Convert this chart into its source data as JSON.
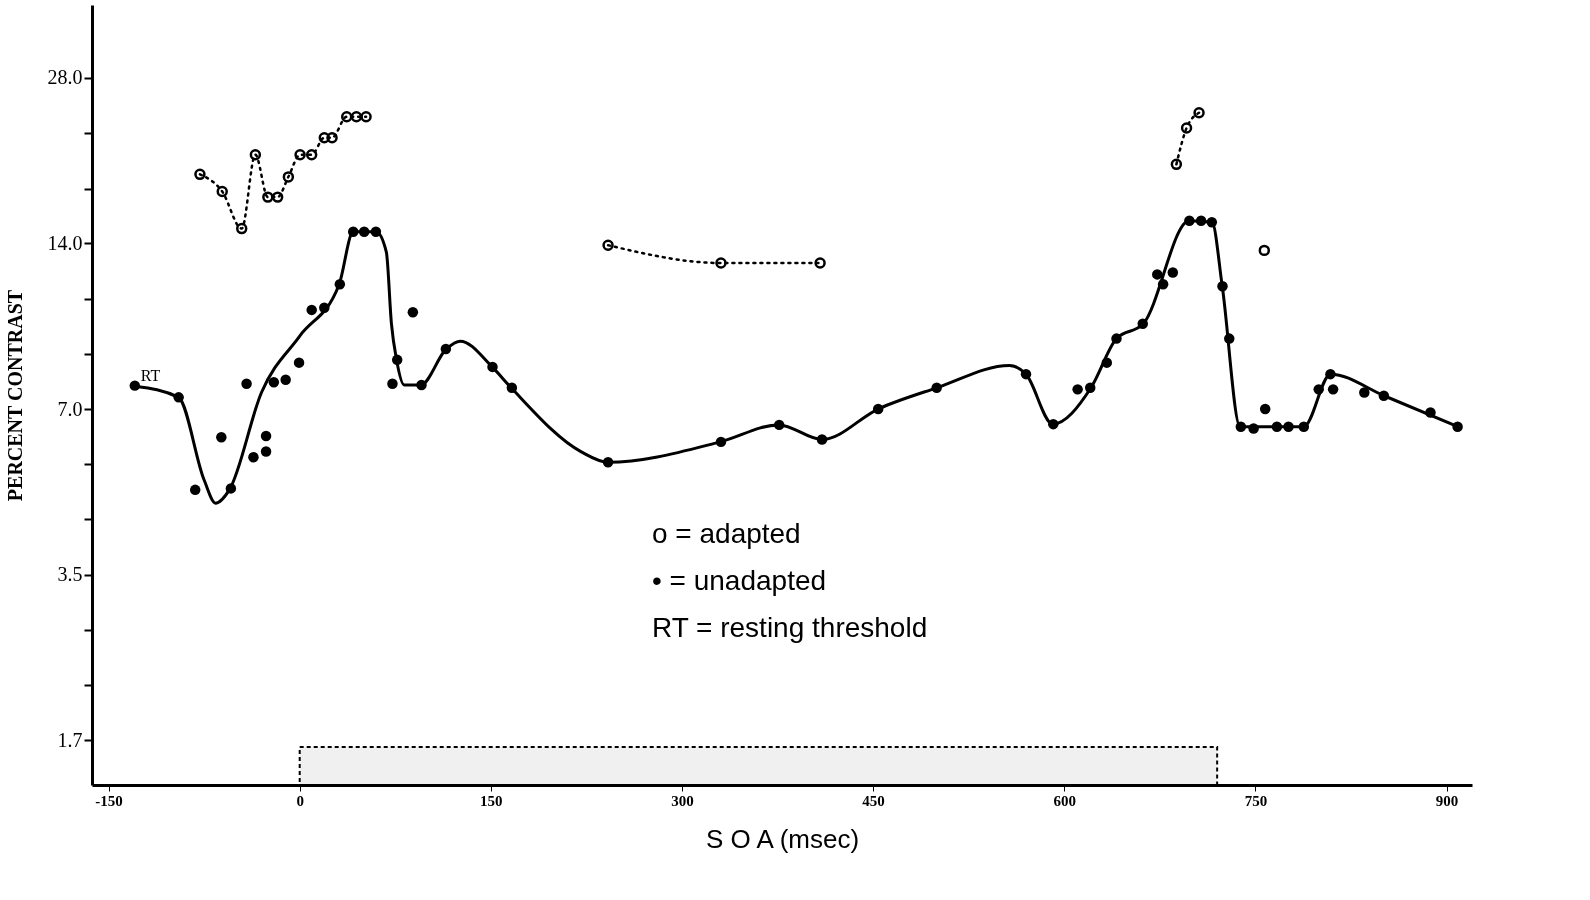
{
  "chart_data": {
    "type": "scatter",
    "xlabel": "S O A (msec)",
    "ylabel": "PERCENT CONTRAST",
    "xlim": [
      -163,
      920
    ],
    "xticks": [
      -150,
      0,
      150,
      300,
      450,
      600,
      750,
      900
    ],
    "ylim": [
      1.45,
      38
    ],
    "log": "y",
    "yticks": [
      {
        "value": 1.75,
        "label": "1.7"
      },
      {
        "value": 2.2,
        "label": null
      },
      {
        "value": 2.78,
        "label": null
      },
      {
        "value": 3.5,
        "label": "3.5"
      },
      {
        "value": 4.41,
        "label": null
      },
      {
        "value": 5.56,
        "label": null
      },
      {
        "value": 7,
        "label": "7.0"
      },
      {
        "value": 8.8,
        "label": null
      },
      {
        "value": 11.1,
        "label": null
      },
      {
        "value": 14,
        "label": "14.0"
      },
      {
        "value": 17.6,
        "label": null
      },
      {
        "value": 22.2,
        "label": null
      },
      {
        "value": 28,
        "label": "28.0"
      }
    ],
    "grid": false,
    "series": [
      {
        "type": "line",
        "color": "#000000",
        "marker": "none",
        "line_style": "solid",
        "x": [
          -129,
          -95,
          -75,
          -66,
          -55,
          -30,
          0,
          31,
          42,
          60,
          68,
          72,
          76,
          82,
          95,
          115,
          126,
          151,
          166,
          221,
          242,
          330,
          376,
          410,
          454,
          500,
          557,
          570,
          591,
          621,
          641,
          662,
          698,
          716,
          724,
          738,
          788,
          809,
          851,
          909
        ],
        "values": [
          7.7,
          7.35,
          5.2,
          4.72,
          5.0,
          7.5,
          9.5,
          11.8,
          14.7,
          14.7,
          13.5,
          10,
          8.6,
          7.74,
          7.74,
          9.0,
          9.3,
          8.35,
          7.65,
          5.85,
          5.6,
          6.1,
          6.55,
          6.16,
          7.0,
          7.65,
          8.4,
          8.1,
          6.57,
          7.65,
          9.4,
          10.0,
          15.4,
          15.3,
          11.7,
          6.5,
          6.5,
          8.1,
          7.4,
          6.5
        ]
      },
      {
        "color": "#000000",
        "marker": "circle",
        "x": [
          -129.4,
          -95,
          -82,
          -61.5,
          -54,
          -41.7,
          -36.3,
          -26.4,
          -26.4,
          -20.3,
          -11,
          -0.5,
          9.4,
          19.3,
          31.5,
          42,
          50.6,
          59.8,
          76.5,
          72.8,
          95.6,
          88.8,
          114.7,
          151.3,
          166.5,
          242,
          330.6,
          376.3,
          409.9,
          454,
          499.9,
          570,
          591.4,
          610.5,
          620.4,
          633.4,
          641,
          661.6,
          673,
          677.6,
          685.2,
          698.2,
          707.4,
          715.8,
          724.2,
          729.5,
          738.6,
          748.6,
          757.7,
          766.9,
          776,
          788,
          799.7,
          808.9,
          811,
          835.5,
          850.8,
          887.4,
          908.7
        ],
        "values": [
          7.72,
          7.35,
          4.99,
          6.22,
          5.02,
          7.78,
          5.72,
          5.86,
          6.25,
          7.83,
          7.91,
          8.5,
          10.6,
          10.7,
          11.8,
          14.7,
          14.7,
          14.7,
          8.6,
          7.78,
          7.74,
          10.5,
          9.0,
          8.35,
          7.65,
          5.6,
          6.1,
          6.55,
          6.16,
          7.0,
          7.65,
          8.1,
          6.57,
          7.6,
          7.65,
          8.5,
          9.4,
          10.0,
          12.3,
          11.8,
          12.4,
          15.4,
          15.4,
          15.3,
          11.7,
          9.4,
          6.5,
          6.45,
          7.0,
          6.5,
          6.5,
          6.5,
          7.6,
          8.1,
          7.6,
          7.5,
          7.4,
          6.9,
          6.5
        ]
      },
      {
        "type": "line",
        "color": "#000000",
        "marker": "circle_open",
        "line_style": "dotted",
        "x": [
          -78.3,
          -60.8,
          -45.5,
          -34.8,
          -25,
          -17.3,
          -8.9,
          0.3,
          9.4,
          19.3,
          25.4,
          36.9,
          44.5,
          52.1,
          150,
          242,
          330.6,
          408.4,
          550,
          688,
          696,
          705.8,
          730,
          757
        ],
        "values": [
          18.7,
          17.4,
          14.9,
          20.3,
          17.0,
          17.0,
          18.5,
          20.3,
          20.3,
          21.8,
          21.8,
          23.8,
          23.8,
          23.8,
          null,
          13.9,
          12.9,
          12.9,
          null,
          19.5,
          22.7,
          24.2,
          null,
          13.6
        ]
      }
    ],
    "bands": [
      {
        "axis": "x",
        "from": 0,
        "to": 720,
        "color": "#000000"
      }
    ],
    "annotations": [
      {
        "text": "RT",
        "x": -129.4,
        "y": 7.72
      },
      "o = adapted",
      "• = unadapted",
      "RT = resting threshold"
    ]
  }
}
